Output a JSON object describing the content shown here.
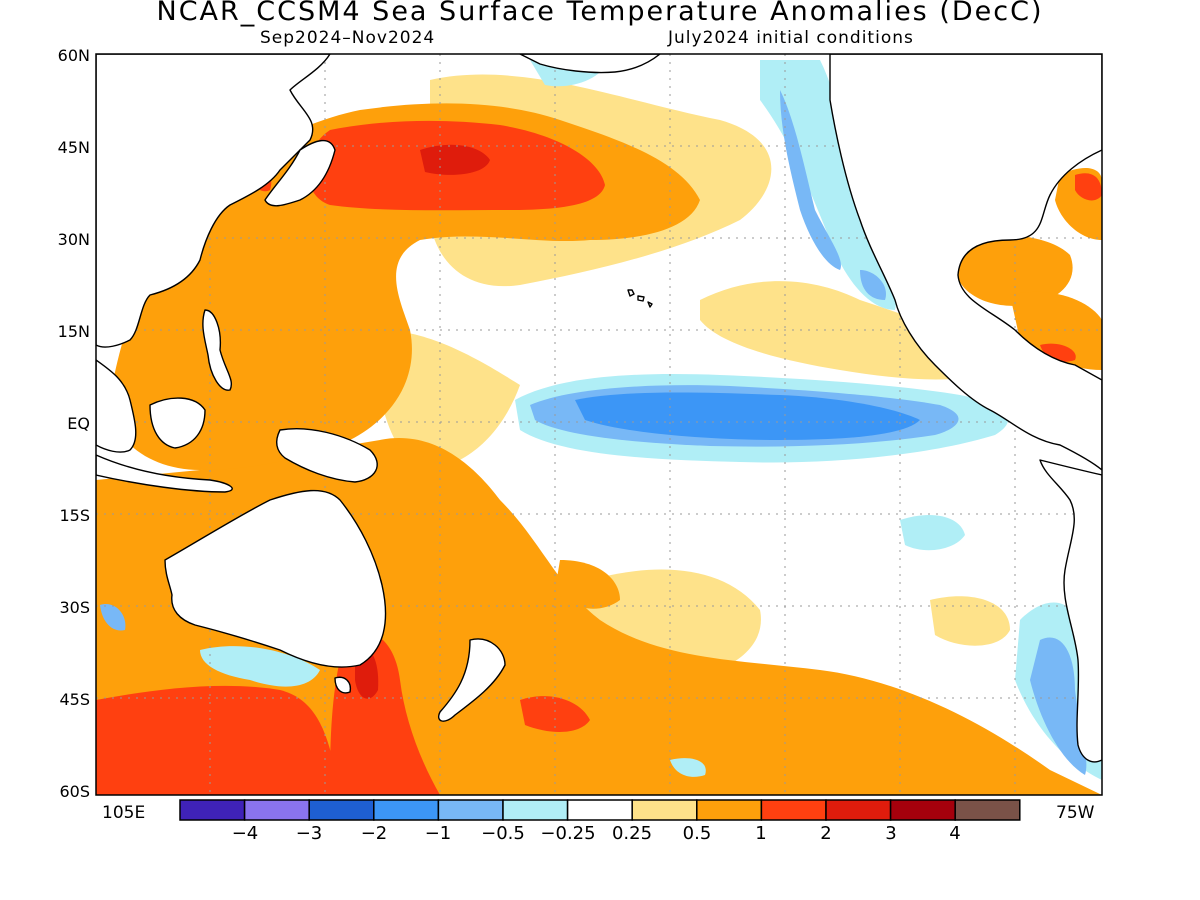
{
  "header": {
    "title": "NCAR_CCSM4 Sea Surface Temperature Anomalies (DecC)",
    "period": "Sep2024–Nov2024",
    "init": "July2024 initial conditions"
  },
  "axes": {
    "lat_labels": [
      "60N",
      "45N",
      "30N",
      "15N",
      "EQ",
      "15S",
      "30S",
      "45S",
      "60S"
    ],
    "lon_left": "105E",
    "lon_right": "75W"
  },
  "colorbar": {
    "labels": [
      "−4",
      "−3",
      "−2",
      "−1",
      "−0.5",
      "−0.25",
      "0.25",
      "0.5",
      "1",
      "2",
      "3",
      "4"
    ],
    "colors": [
      "#3f22b8",
      "#8a73ee",
      "#1e5fd2",
      "#3c96f6",
      "#78b8f6",
      "#b0eef6",
      "#ffffff",
      "#fee28a",
      "#fea00b",
      "#ff4010",
      "#df1c0c",
      "#a5000c",
      "#7a5248"
    ]
  },
  "palette": {
    "ocean_neutral": "#ffffff",
    "land": "#ffffff",
    "coast": "#000000",
    "grid": "#9a9a9a"
  }
}
